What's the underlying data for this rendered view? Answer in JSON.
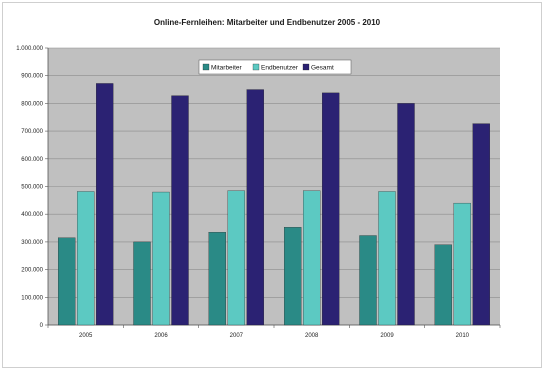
{
  "chart_data": {
    "type": "bar",
    "title": "Online-Fernleihen: Mitarbeiter und Endbenutzer 2005 - 2010",
    "xlabel": "",
    "ylabel": "",
    "categories": [
      "2005",
      "2006",
      "2007",
      "2008",
      "2009",
      "2010"
    ],
    "series": [
      {
        "name": "Mitarbeiter",
        "color": "#2a8a86",
        "values": [
          315000,
          300000,
          335000,
          353000,
          323000,
          290000
        ]
      },
      {
        "name": "Endbenutzer",
        "color": "#5cc9c2",
        "values": [
          482000,
          480000,
          485000,
          485000,
          482000,
          440000
        ]
      },
      {
        "name": "Gesamt",
        "color": "#2b2273",
        "values": [
          872000,
          828000,
          850000,
          838000,
          800000,
          727000
        ]
      }
    ],
    "ylim": [
      0,
      1000000
    ],
    "yticks": [
      "0",
      "100.000",
      "200.000",
      "300.000",
      "400.000",
      "500.000",
      "600.000",
      "700.000",
      "800.000",
      "900.000",
      "1.000.000"
    ],
    "grid": true,
    "legend_position": "top-center",
    "plot_background": "#c0c0c0"
  }
}
